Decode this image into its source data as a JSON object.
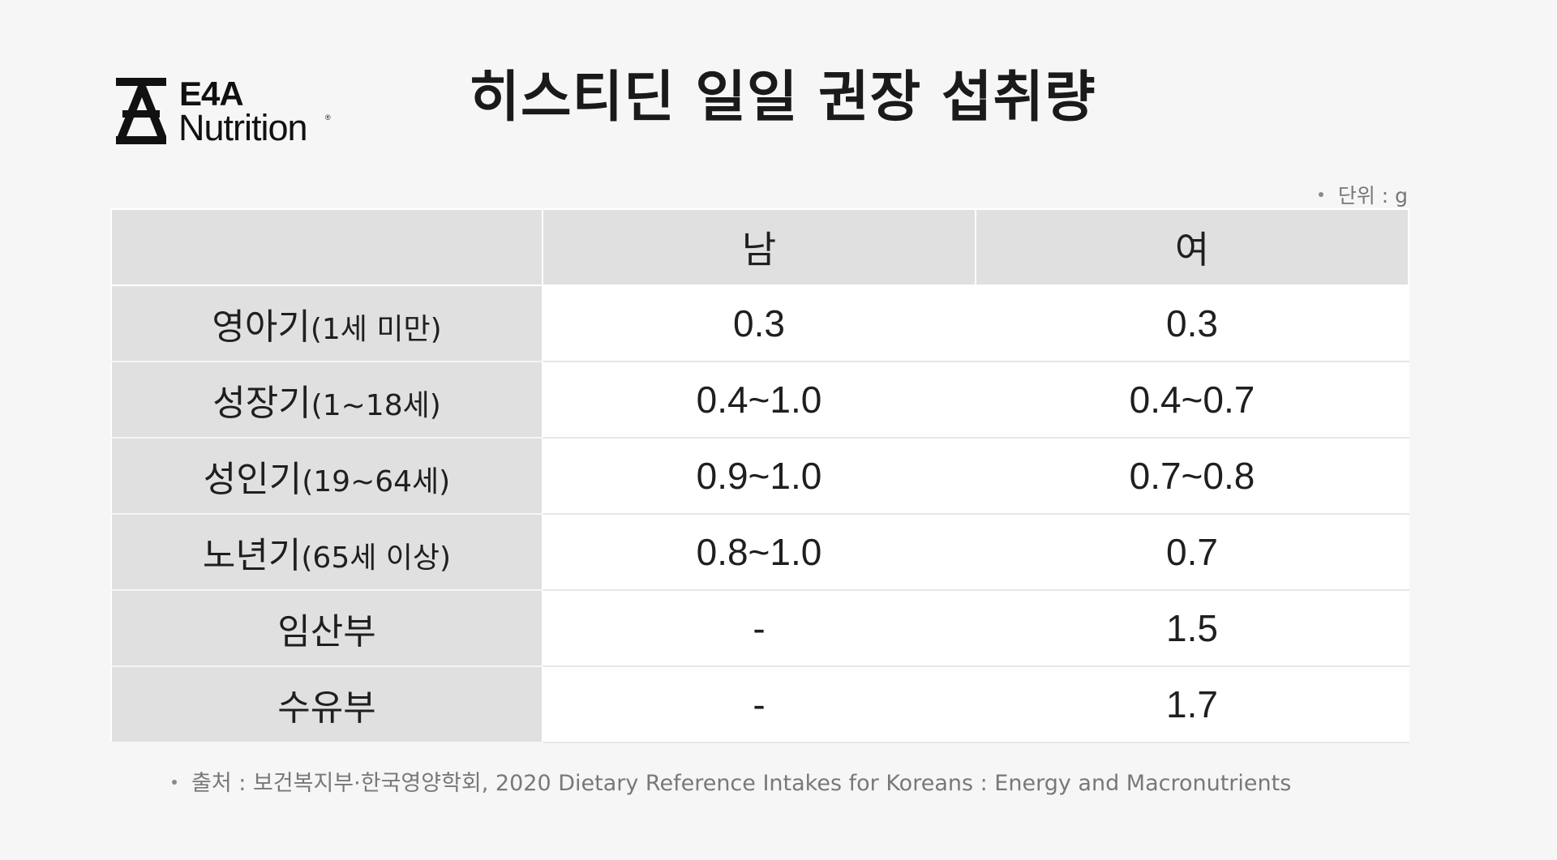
{
  "logo": {
    "brand": "E4A",
    "name": "Nutrition",
    "registered": "®"
  },
  "title": "히스티딘 일일 권장 섭취량",
  "unit_note": "단위 : g",
  "table": {
    "header": [
      "",
      "남",
      "여"
    ],
    "rows": [
      {
        "label": "영아기",
        "label_sub": "(1세 미만)",
        "male": "0.3",
        "female": "0.3"
      },
      {
        "label": "성장기",
        "label_sub": "(1~18세)",
        "male": "0.4~1.0",
        "female": "0.4~0.7"
      },
      {
        "label": "성인기",
        "label_sub": "(19~64세)",
        "male": "0.9~1.0",
        "female": "0.7~0.8"
      },
      {
        "label": "노년기",
        "label_sub": "(65세 이상)",
        "male": "0.8~1.0",
        "female": "0.7"
      },
      {
        "label": "임산부",
        "label_sub": "",
        "male": "-",
        "female": "1.5"
      },
      {
        "label": "수유부",
        "label_sub": "",
        "male": "-",
        "female": "1.7"
      }
    ]
  },
  "source": "출처 : 보건복지부·한국영양학회, 2020 Dietary Reference Intakes for Koreans : Energy and Macronutrients"
}
